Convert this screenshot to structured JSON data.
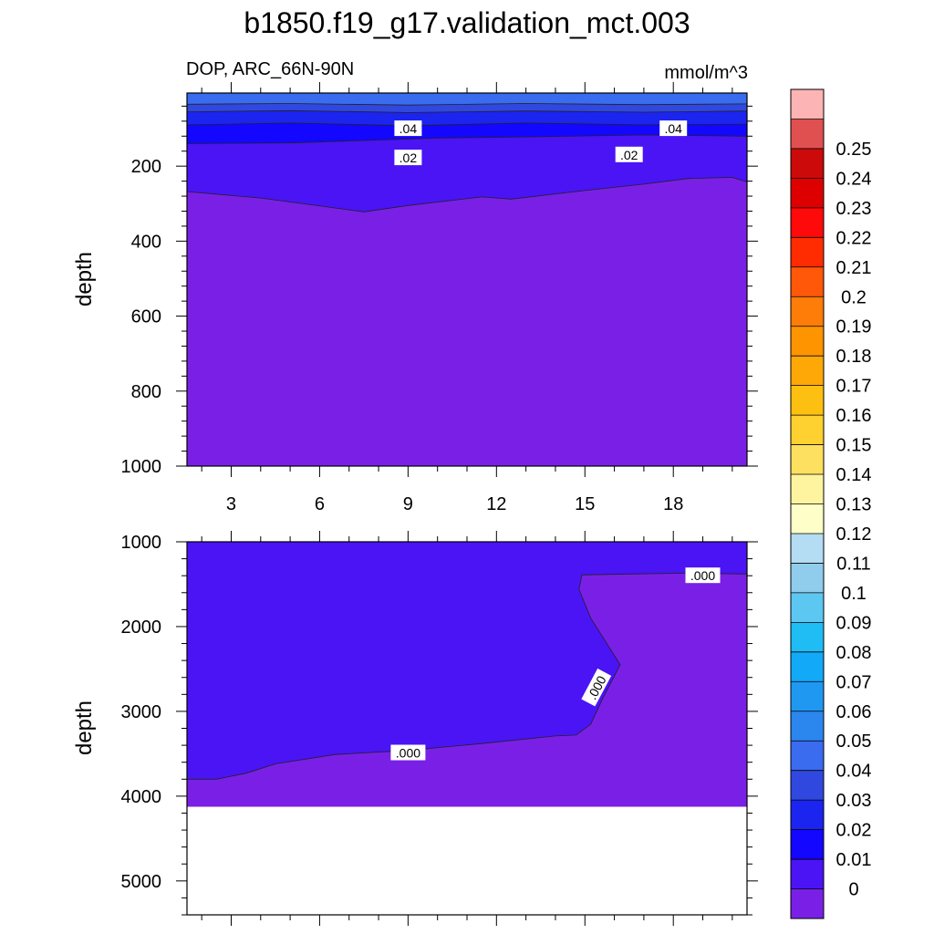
{
  "title": "b1850.f19_g17.validation_mct.003",
  "subtitle_left": "DOP, ARC_66N-90N",
  "subtitle_right": "mmol/m^3",
  "colors": {
    "level_fills": [
      "#7a20e6",
      "#4a14f5",
      "#1407ff",
      "#1c24f0",
      "#3048e0",
      "#3a6cf0",
      "#2b86ee",
      "#1f98f2",
      "#12aaf8",
      "#20bcf4",
      "#5cc8f2",
      "#90ccec",
      "#b4dcf2",
      "#fefec8",
      "#fef4a0",
      "#fee060",
      "#fed030",
      "#fec010",
      "#fea808",
      "#fe9400",
      "#fe7c08",
      "#fe5808",
      "#fe2c00",
      "#fe0a0a",
      "#de0000",
      "#cc0a0a",
      "#e05050",
      "#fcb4b4"
    ],
    "contour_line": "#222222",
    "label_bg": "#ffffff"
  },
  "chart_data": [
    {
      "type": "contour",
      "panel": "upper",
      "ylabel": "depth",
      "xticks": [
        3,
        6,
        9,
        12,
        15,
        18
      ],
      "xtick_labels": [
        "3",
        "6",
        "9",
        "12",
        "15",
        "18"
      ],
      "xlim": [
        1.5,
        20.5
      ],
      "yticks": [
        200,
        400,
        600,
        800,
        1000
      ],
      "ytick_labels": [
        "200",
        "400",
        "600",
        "800",
        "1000"
      ],
      "ylim": [
        5,
        1000
      ],
      "y_inverted": true,
      "bands": [
        {
          "level": 0.05,
          "boundary": [
            [
              1.5,
              5
            ],
            [
              20.5,
              5
            ]
          ]
        },
        {
          "level": 0.04,
          "boundary": [
            [
              1.5,
              35
            ],
            [
              5,
              33
            ],
            [
              9,
              37
            ],
            [
              13,
              33
            ],
            [
              17,
              36
            ],
            [
              20.5,
              34
            ]
          ]
        },
        {
          "level": 0.03,
          "boundary": [
            [
              1.5,
              55
            ],
            [
              5,
              52
            ],
            [
              9,
              57
            ],
            [
              13,
              53
            ],
            [
              17,
              56
            ],
            [
              20.5,
              53
            ]
          ]
        },
        {
          "level": 0.02,
          "boundary": [
            [
              1.5,
              90
            ],
            [
              5,
              85
            ],
            [
              9,
              92
            ],
            [
              13,
              85
            ],
            [
              17,
              90
            ],
            [
              20.5,
              88
            ]
          ]
        },
        {
          "level": 0.01,
          "boundary": [
            [
              1.5,
              140
            ],
            [
              5,
              138
            ],
            [
              10,
              125
            ],
            [
              13,
              122
            ],
            [
              17,
              117
            ],
            [
              20.5,
              120
            ]
          ]
        },
        {
          "level": 0.0,
          "boundary": [
            [
              1.5,
              268
            ],
            [
              4,
              285
            ],
            [
              7.5,
              322
            ],
            [
              9,
              305
            ],
            [
              11.5,
              282
            ],
            [
              12.5,
              288
            ],
            [
              15,
              265
            ],
            [
              17,
              248
            ],
            [
              18.5,
              233
            ],
            [
              20,
              230
            ],
            [
              20.5,
              242
            ]
          ]
        }
      ],
      "contour_labels": [
        {
          "text": ".04",
          "x": 9.0,
          "y": 100
        },
        {
          "text": ".04",
          "x": 18.0,
          "y": 100
        },
        {
          "text": ".02",
          "x": 9.0,
          "y": 178
        },
        {
          "text": ".02",
          "x": 16.5,
          "y": 170
        }
      ]
    },
    {
      "type": "contour",
      "panel": "lower",
      "ylabel": "depth",
      "xlim": [
        1.5,
        20.5
      ],
      "yticks": [
        1000,
        2000,
        3000,
        4000,
        5000
      ],
      "ytick_labels": [
        "1000",
        "2000",
        "3000",
        "4000",
        "5000"
      ],
      "ylim": [
        1000,
        5400
      ],
      "y_inverted": true,
      "data_bottom": 4125,
      "bands": [
        {
          "level": 0.01,
          "boundary": [
            [
              1.5,
              1000
            ],
            [
              20.5,
              1000
            ]
          ]
        },
        {
          "level": 0.0,
          "boundary": [
            [
              20.5,
              1380
            ],
            [
              18.5,
              1370
            ],
            [
              16.5,
              1380
            ],
            [
              14.9,
              1390
            ],
            [
              14.8,
              1560
            ],
            [
              15.2,
              1900
            ],
            [
              16.2,
              2450
            ],
            [
              15.6,
              2850
            ],
            [
              15.2,
              3150
            ],
            [
              14.7,
              3280
            ],
            [
              14.0,
              3290
            ],
            [
              11.5,
              3380
            ],
            [
              9.0,
              3460
            ],
            [
              6.5,
              3510
            ],
            [
              4.5,
              3620
            ],
            [
              3.5,
              3730
            ],
            [
              2.5,
              3800
            ],
            [
              1.5,
              3800
            ]
          ]
        }
      ],
      "contour_labels": [
        {
          "text": ".000",
          "x": 19.0,
          "y": 1400
        },
        {
          "text": ".000",
          "x": 15.4,
          "y": 2720,
          "angle": -62
        },
        {
          "text": ".000",
          "x": 9.0,
          "y": 3490
        }
      ]
    }
  ],
  "colorbar": {
    "labels": [
      "0",
      "0.01",
      "0.02",
      "0.03",
      "0.04",
      "0.05",
      "0.06",
      "0.07",
      "0.08",
      "0.09",
      "0.1",
      "0.11",
      "0.12",
      "0.13",
      "0.14",
      "0.15",
      "0.16",
      "0.17",
      "0.18",
      "0.19",
      "0.2",
      "0.21",
      "0.22",
      "0.23",
      "0.24",
      "0.25"
    ]
  }
}
